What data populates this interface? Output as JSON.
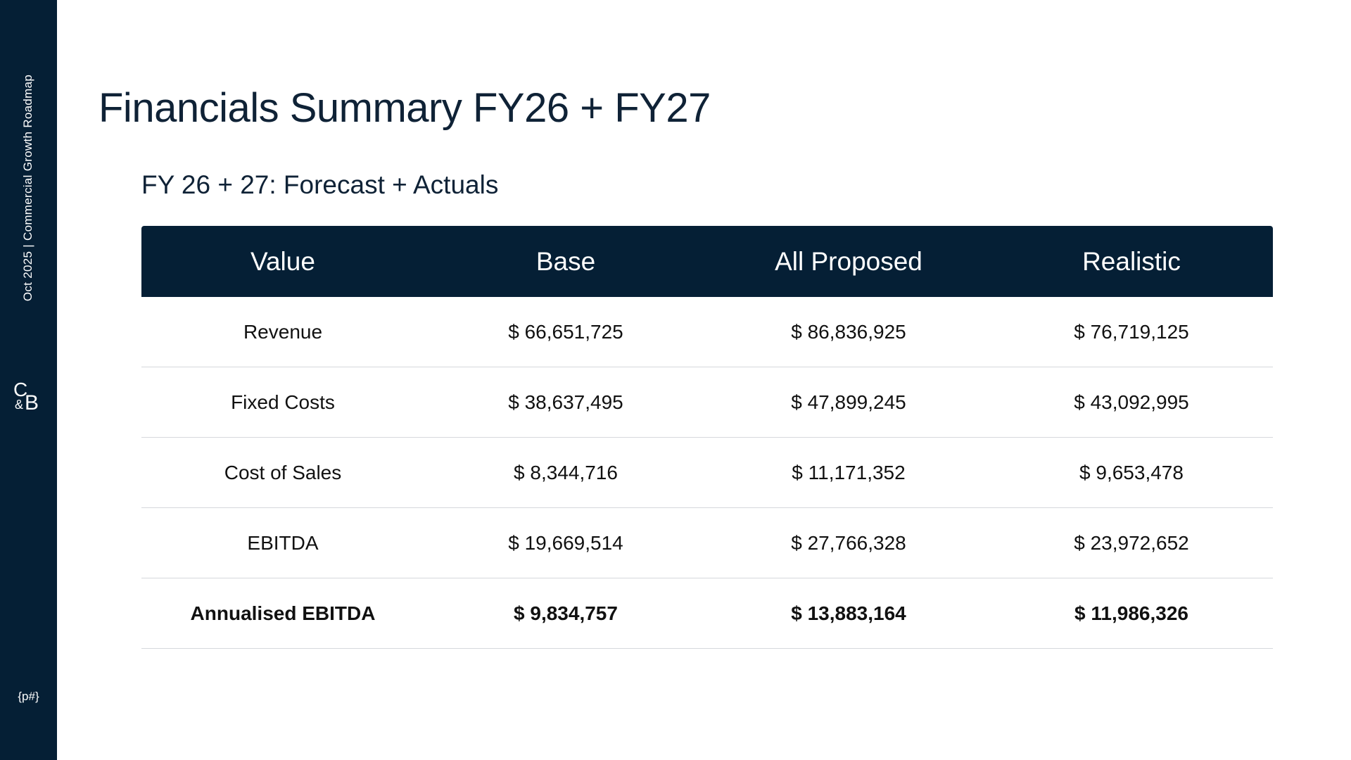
{
  "sidebar": {
    "tagline": "Oct 2025  |  Commercial Growth Roadmap",
    "logo": {
      "c": "C",
      "amp": "&",
      "b": "B"
    },
    "page_number": "{p#}"
  },
  "page": {
    "title": "Financials Summary FY26 + FY27",
    "section_title": "FY 26 + 27: Forecast + Actuals"
  },
  "table": {
    "headers": [
      "Value",
      "Base",
      "All Proposed",
      "Realistic"
    ],
    "rows": [
      [
        "Revenue",
        "$ 66,651,725",
        "$ 86,836,925",
        "$ 76,719,125"
      ],
      [
        "Fixed Costs",
        "$ 38,637,495",
        "$ 47,899,245",
        "$ 43,092,995"
      ],
      [
        "Cost of Sales",
        "$ 8,344,716",
        "$ 11,171,352",
        "$ 9,653,478"
      ],
      [
        "EBITDA",
        "$ 19,669,514",
        "$ 27,766,328",
        "$ 23,972,652"
      ],
      [
        "Annualised EBITDA",
        "$ 9,834,757",
        "$ 13,883,164",
        "$ 11,986,326"
      ]
    ]
  },
  "colors": {
    "sidebar_bg": "#051f35",
    "header_bg": "#051f35",
    "title_text": "#0f2236",
    "row_divider": "#d6d8dc"
  }
}
